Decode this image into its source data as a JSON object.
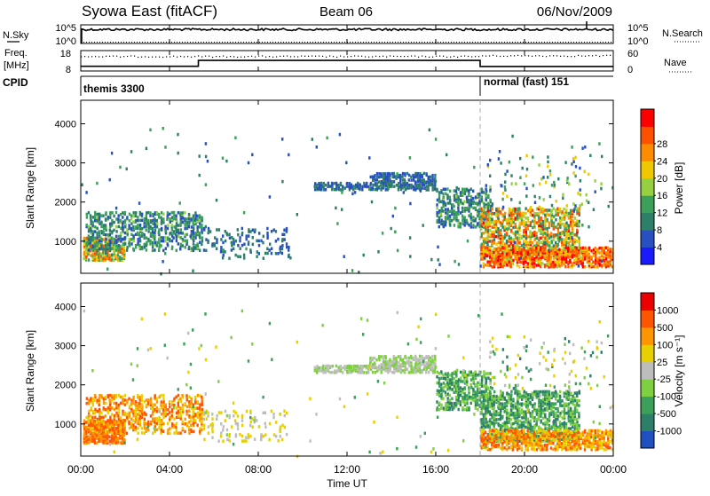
{
  "header": {
    "station": "Syowa East (fitACF)",
    "beam": "Beam 06",
    "date": "06/Nov/2009"
  },
  "nsky_panel": {
    "label": "N.Sky",
    "right_label": "N.Search",
    "ticks_left": [
      "10^5",
      "10^0"
    ],
    "ticks_right": [
      "10^5",
      "10^0"
    ]
  },
  "freq_panel": {
    "label_line1": "Freq.",
    "label_line2": "[MHz]",
    "ticks_left": [
      "18",
      "8"
    ],
    "ticks_right": [
      "60",
      "0"
    ],
    "right_label": "Nave"
  },
  "cpid_panel": {
    "label": "CPID",
    "modes": [
      {
        "name": "themis 3300",
        "start_h": 0,
        "end_h": 18
      },
      {
        "name": "normal (fast) 151",
        "start_h": 18,
        "end_h": 24
      }
    ]
  },
  "colors": {
    "power": [
      "#1a1aff",
      "#2850c0",
      "#2e7f6a",
      "#3aa05a",
      "#96d040",
      "#f0c800",
      "#ff8c00",
      "#ff5000",
      "#ff0000"
    ],
    "velocity": [
      "#ee0000",
      "#ff5500",
      "#ff9500",
      "#e8d000",
      "#bdbdbd",
      "#7fd040",
      "#3aa05a",
      "#2e7f6a",
      "#1f4fc0"
    ]
  },
  "chart_data": [
    {
      "type": "heatmap",
      "name": "power",
      "xlabel": "",
      "ylabel": "Slant Range [km]",
      "xlim_h": [
        0,
        24
      ],
      "ylim_km": [
        180,
        4600
      ],
      "yticks": [
        1000,
        2000,
        3000,
        4000
      ],
      "colorbar": {
        "label": "Power [dB]",
        "ticks": [
          "4",
          "8",
          "12",
          "16",
          "20",
          "24",
          "28"
        ],
        "range": [
          0,
          30
        ]
      },
      "regions": [
        {
          "t0": 0.1,
          "t1": 2.0,
          "r0": 550,
          "r1": 1150,
          "v0": 10,
          "v1": 26,
          "d": 0.7
        },
        {
          "t0": 0.2,
          "t1": 5.5,
          "r0": 800,
          "r1": 1800,
          "v0": 4,
          "v1": 14,
          "d": 0.38
        },
        {
          "t0": 5.5,
          "t1": 9.5,
          "r0": 600,
          "r1": 1400,
          "v0": 4,
          "v1": 10,
          "d": 0.12
        },
        {
          "t0": 10.5,
          "t1": 16.0,
          "r0": 2350,
          "r1": 2550,
          "v0": 4,
          "v1": 10,
          "d": 0.6
        },
        {
          "t0": 13.0,
          "t1": 16.0,
          "r0": 2550,
          "r1": 2800,
          "v0": 4,
          "v1": 10,
          "d": 0.5
        },
        {
          "t0": 16.0,
          "t1": 18.5,
          "r0": 1400,
          "r1": 2400,
          "v0": 4,
          "v1": 14,
          "d": 0.42
        },
        {
          "t0": 18.0,
          "t1": 22.5,
          "r0": 600,
          "r1": 1900,
          "v0": 8,
          "v1": 28,
          "d": 0.5
        },
        {
          "t0": 18.0,
          "t1": 24.0,
          "r0": 380,
          "r1": 900,
          "v0": 16,
          "v1": 30,
          "d": 0.6
        },
        {
          "t0": 18.2,
          "t1": 23.5,
          "r0": 1900,
          "r1": 3300,
          "v0": 4,
          "v1": 20,
          "d": 0.05
        },
        {
          "t0": 0.0,
          "t1": 24.0,
          "r0": 200,
          "r1": 4000,
          "v0": 4,
          "v1": 12,
          "d": 0.006
        }
      ]
    },
    {
      "type": "heatmap",
      "name": "velocity",
      "xlabel": "Time UT",
      "ylabel": "Slant Range [km]",
      "xticks": [
        "00:00",
        "04:00",
        "08:00",
        "12:00",
        "16:00",
        "20:00",
        "00:00"
      ],
      "xlim_h": [
        0,
        24
      ],
      "ylim_km": [
        180,
        4600
      ],
      "yticks": [
        1000,
        2000,
        3000,
        4000
      ],
      "colorbar": {
        "label": "Velocity [m s⁻¹]",
        "ticks": [
          "1000",
          "500",
          "100",
          "25",
          "-25",
          "-100",
          "-500",
          "-1000"
        ]
      },
      "regions": [
        {
          "t0": 0.1,
          "t1": 2.0,
          "r0": 550,
          "r1": 1150,
          "v0": 1,
          "v1": 3,
          "d": 0.7
        },
        {
          "t0": 0.2,
          "t1": 5.5,
          "r0": 800,
          "r1": 1800,
          "v0": 1,
          "v1": 4,
          "d": 0.38
        },
        {
          "t0": 5.5,
          "t1": 9.5,
          "r0": 600,
          "r1": 1400,
          "v0": 3,
          "v1": 5,
          "d": 0.12
        },
        {
          "t0": 10.5,
          "t1": 16.0,
          "r0": 2350,
          "r1": 2550,
          "v0": 4,
          "v1": 6,
          "d": 0.6
        },
        {
          "t0": 13.0,
          "t1": 16.0,
          "r0": 2550,
          "r1": 2800,
          "v0": 4,
          "v1": 6,
          "d": 0.5
        },
        {
          "t0": 16.0,
          "t1": 18.5,
          "r0": 1400,
          "r1": 2400,
          "v0": 5,
          "v1": 8,
          "d": 0.42
        },
        {
          "t0": 18.0,
          "t1": 22.5,
          "r0": 600,
          "r1": 1900,
          "v0": 5,
          "v1": 8,
          "d": 0.5
        },
        {
          "t0": 18.0,
          "t1": 24.0,
          "r0": 380,
          "r1": 900,
          "v0": 1,
          "v1": 4,
          "d": 0.6
        },
        {
          "t0": 18.2,
          "t1": 23.5,
          "r0": 1900,
          "r1": 3300,
          "v0": 3,
          "v1": 8,
          "d": 0.05
        },
        {
          "t0": 0.0,
          "t1": 24.0,
          "r0": 200,
          "r1": 4000,
          "v0": 3,
          "v1": 7,
          "d": 0.006
        }
      ]
    }
  ]
}
